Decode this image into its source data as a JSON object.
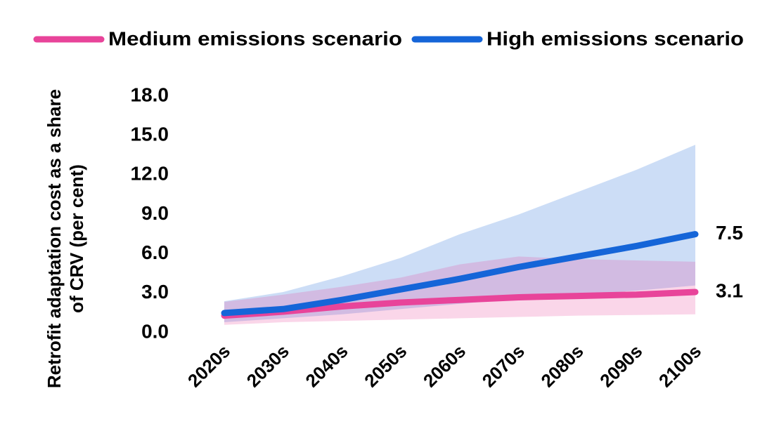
{
  "chart_data": {
    "type": "line-band",
    "y_label": "Retrofit adaptation cost as a share of CRV (per cent)",
    "categories": [
      "2020s",
      "2030s",
      "2040s",
      "2050s",
      "2060s",
      "2070s",
      "2080s",
      "2090s",
      "2100s"
    ],
    "ylim": [
      0,
      18
    ],
    "yticks": [
      {
        "value": 0,
        "label": "0.0"
      },
      {
        "value": 3,
        "label": "3.0"
      },
      {
        "value": 6,
        "label": "6.0"
      },
      {
        "value": 9,
        "label": "9.0"
      },
      {
        "value": 12,
        "label": "12.0"
      },
      {
        "value": 15,
        "label": "15.0"
      },
      {
        "value": 18,
        "label": "18.0"
      }
    ],
    "grid": false,
    "legend": "top",
    "series": [
      {
        "name": "Medium emissions scenario",
        "color": "#e8449a",
        "values": [
          1.3,
          1.6,
          2.0,
          2.3,
          2.5,
          2.7,
          2.8,
          2.9,
          3.1
        ],
        "lower": [
          0.6,
          0.8,
          0.9,
          1.0,
          1.1,
          1.2,
          1.3,
          1.35,
          1.4
        ],
        "upper": [
          2.35,
          2.9,
          3.5,
          4.2,
          5.2,
          5.8,
          5.6,
          5.5,
          5.4
        ],
        "value_labels": [
          null,
          null,
          null,
          null,
          null,
          null,
          null,
          null,
          "3.1"
        ]
      },
      {
        "name": "High emissions scenario",
        "color": "#1565d8",
        "values": [
          1.5,
          1.8,
          2.5,
          3.3,
          4.1,
          5.0,
          5.8,
          6.6,
          7.5
        ],
        "lower": [
          0.8,
          1.1,
          1.4,
          1.8,
          2.2,
          2.6,
          2.9,
          3.2,
          3.6
        ],
        "upper": [
          2.4,
          3.1,
          4.3,
          5.7,
          7.5,
          9.0,
          10.7,
          12.4,
          14.3
        ],
        "value_labels": [
          null,
          null,
          null,
          null,
          null,
          null,
          null,
          null,
          "7.5"
        ]
      }
    ]
  }
}
